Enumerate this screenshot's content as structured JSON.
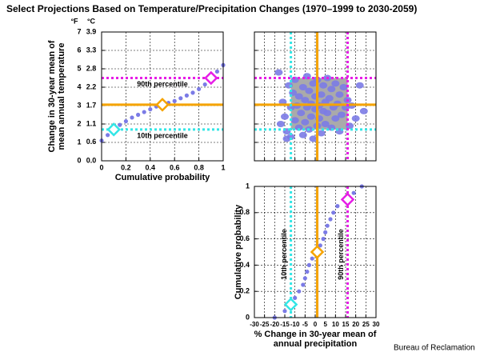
{
  "title": "Select Projections Based on Temperature/Precipitation Changes (1970–1999 to 2030-2059)",
  "credit": "Bureau of Reclamation",
  "chart_data": [
    {
      "type": "cdf",
      "xlabel": "Cumulative probability",
      "ylabel": [
        "Change in 30-year mean of",
        "mean annual temperature"
      ],
      "y_unit": "°F",
      "y2_unit": "°C",
      "xlim": [
        0,
        1
      ],
      "xticks": [
        0,
        0.2,
        0.4,
        0.6,
        0.8,
        1
      ],
      "ylim": [
        0,
        7
      ],
      "yticks": [
        0,
        1,
        2,
        3,
        4,
        5,
        6,
        7
      ],
      "y2lim": [
        0,
        3.89
      ],
      "y2ticks": [
        {
          "value": 0,
          "label": "0.0"
        },
        {
          "value": 0.56,
          "label": "0.6"
        },
        {
          "value": 1.11,
          "label": "1.1"
        },
        {
          "value": 1.67,
          "label": "1.7"
        },
        {
          "value": 2.22,
          "label": "2.2"
        },
        {
          "value": 2.78,
          "label": "2.8"
        },
        {
          "value": 3.33,
          "label": "3.3"
        },
        {
          "value": 3.89,
          "label": "3.9"
        }
      ],
      "grid": true,
      "orientation": "horizontal",
      "curve": {
        "color": "#7b7be6",
        "x": [
          0,
          0.05,
          0.1,
          0.15,
          0.2,
          0.25,
          0.3,
          0.35,
          0.4,
          0.45,
          0.5,
          0.55,
          0.6,
          0.65,
          0.7,
          0.75,
          0.8,
          0.85,
          0.9,
          0.95,
          1
        ],
        "y": [
          1.1,
          1.4,
          1.7,
          1.95,
          2.15,
          2.35,
          2.5,
          2.65,
          2.8,
          2.95,
          3.05,
          3.15,
          3.25,
          3.4,
          3.55,
          3.7,
          3.9,
          4.15,
          4.5,
          4.85,
          5.2
        ]
      },
      "percentiles": [
        {
          "label": "10th percentile",
          "color": "#33e6e6",
          "p": 0.1,
          "value": 1.7
        },
        {
          "color": "#f5a300",
          "p": 0.5,
          "value": 3.05
        },
        {
          "label": "90th percentile",
          "color": "#e61ee6",
          "p": 0.9,
          "value": 4.5
        }
      ]
    },
    {
      "type": "scatter",
      "color": "#7b7be6",
      "box_color": "#aaaaaa",
      "xlim": [
        -30,
        30
      ],
      "xticks": [
        -30,
        -25,
        -20,
        -15,
        -10,
        -5,
        0,
        5,
        10,
        15,
        20,
        25,
        30
      ],
      "ylim": [
        0,
        7
      ],
      "yticks": [
        0,
        1,
        2,
        3,
        4,
        5,
        6,
        7
      ],
      "grid": true,
      "x": [
        -18,
        -16,
        -15,
        -14,
        -13,
        -12,
        -12,
        -11,
        -10,
        -10,
        -9,
        -8,
        -8,
        -7,
        -6,
        -6,
        -5,
        -5,
        -4,
        -4,
        -3,
        -3,
        -2,
        -2,
        -1,
        -1,
        0,
        0,
        1,
        1,
        2,
        2,
        3,
        3,
        4,
        4,
        5,
        5,
        6,
        6,
        7,
        8,
        8,
        9,
        10,
        10,
        11,
        12,
        12,
        13,
        14,
        15,
        16,
        17,
        18,
        20,
        22,
        24,
        -17,
        -14
      ],
      "y": [
        4.8,
        3.2,
        2.4,
        1.6,
        4.1,
        2.9,
        1.3,
        3.7,
        2.2,
        4.4,
        3.0,
        1.8,
        3.5,
        2.6,
        4.0,
        1.4,
        3.3,
        2.1,
        4.6,
        2.9,
        1.7,
        3.8,
        2.4,
        3.1,
        1.2,
        4.2,
        2.8,
        3.5,
        1.9,
        4.4,
        3.0,
        2.3,
        3.6,
        1.5,
        4.1,
        2.7,
        3.2,
        2.0,
        4.5,
        2.6,
        3.4,
        1.8,
        3.9,
        2.9,
        2.3,
        4.2,
        3.1,
        1.6,
        3.6,
        2.5,
        4.0,
        2.9,
        3.3,
        1.9,
        3.0,
        2.3,
        4.1,
        2.7,
        2.0,
        1.2
      ]
    },
    {
      "type": "cdf",
      "xlabel": [
        "% Change in 30-year mean of",
        "annual precipitation"
      ],
      "ylabel": "Cumulative probability",
      "xlim": [
        -30,
        30
      ],
      "xticks": [
        -30,
        -25,
        -20,
        -15,
        -10,
        -5,
        0,
        5,
        10,
        15,
        20,
        25,
        30
      ],
      "ylim": [
        0,
        1
      ],
      "yticks": [
        0,
        0.2,
        0.4,
        0.6,
        0.8,
        1
      ],
      "grid": true,
      "orientation": "vertical",
      "curve": {
        "color": "#7b7be6",
        "x": [
          -20,
          -15,
          -12,
          -10,
          -8,
          -6,
          -5,
          -4,
          -3,
          -1.5,
          1,
          2.5,
          4,
          5,
          6,
          7.5,
          9,
          11,
          16,
          19,
          23
        ],
        "y": [
          0,
          0.05,
          0.1,
          0.15,
          0.2,
          0.25,
          0.3,
          0.35,
          0.4,
          0.45,
          0.5,
          0.55,
          0.6,
          0.65,
          0.7,
          0.75,
          0.8,
          0.85,
          0.9,
          0.95,
          1
        ]
      },
      "percentiles": [
        {
          "label": "10th percentile",
          "color": "#33e6e6",
          "p": 0.1,
          "value": -12
        },
        {
          "color": "#f5a300",
          "p": 0.5,
          "value": 1
        },
        {
          "label": "90th percentile",
          "color": "#e61ee6",
          "p": 0.9,
          "value": 16
        }
      ]
    }
  ]
}
